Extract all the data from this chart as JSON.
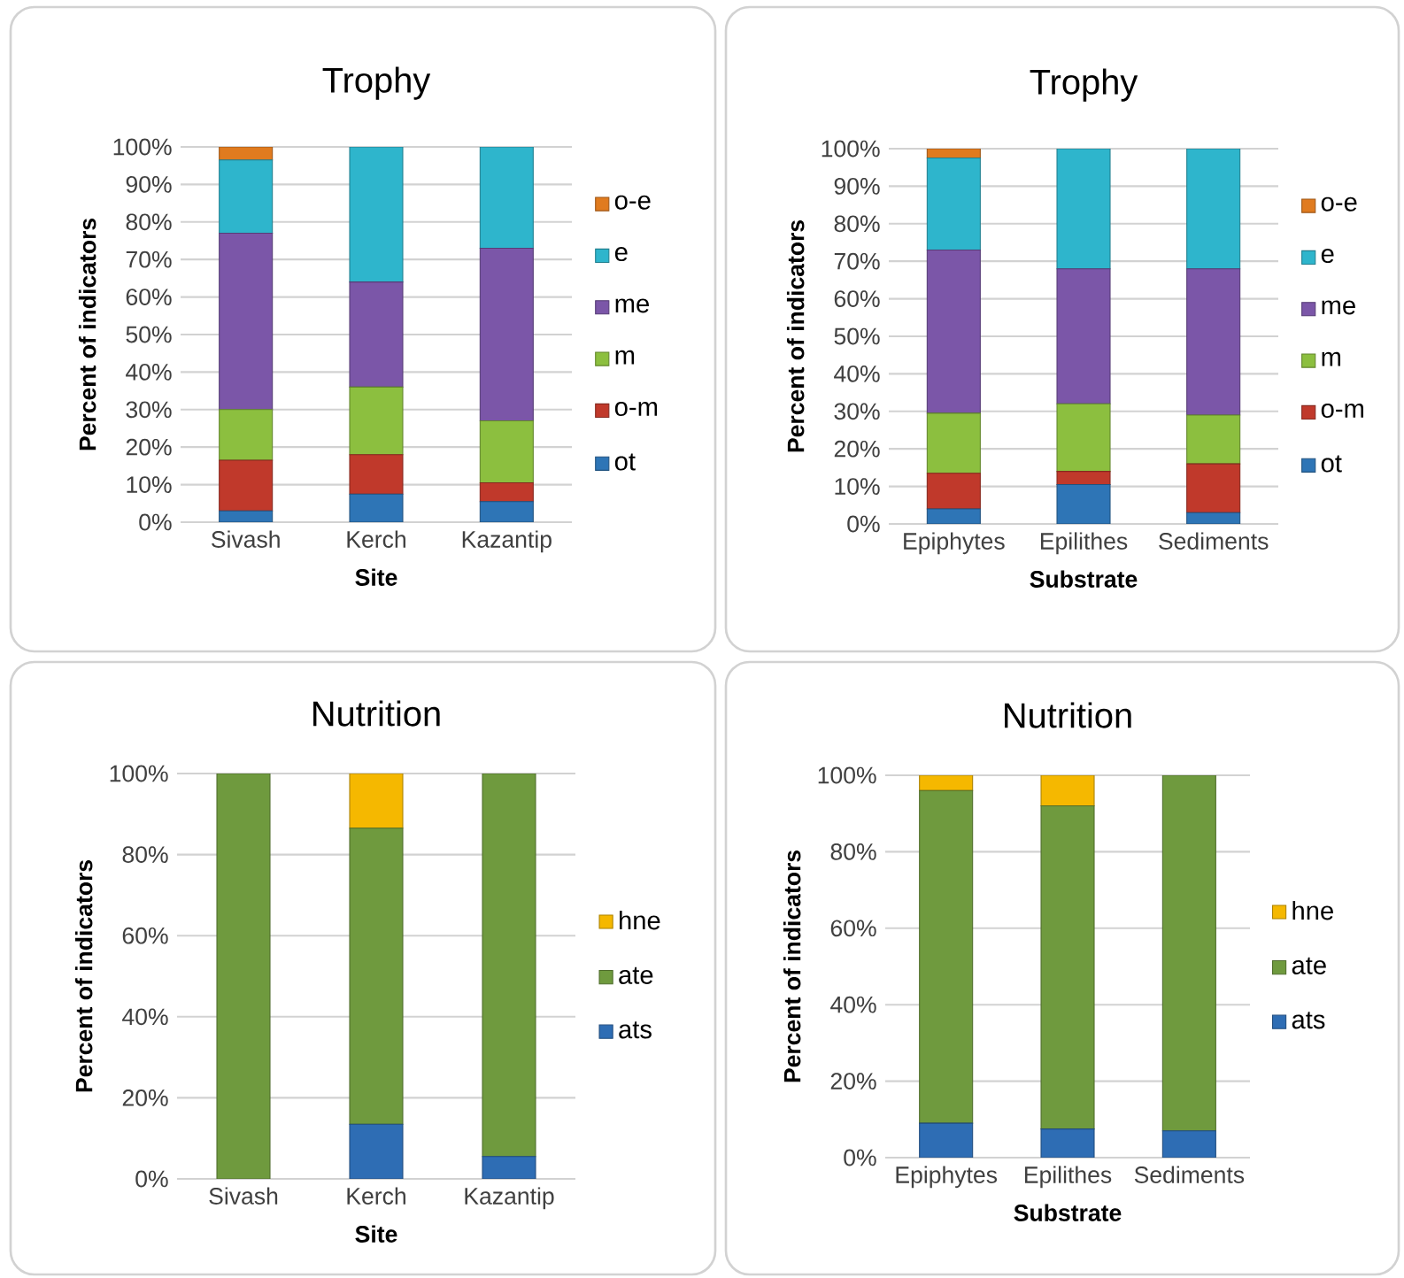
{
  "chart_data": [
    {
      "type": "bar",
      "title": "Trophy",
      "xlabel": "Site",
      "ylabel": "Percent of indicators",
      "categories": [
        "Sivash",
        "Kerch",
        "Kazantip"
      ],
      "stacked": true,
      "grid": "y",
      "legend": "right",
      "ylim": [
        0,
        100
      ],
      "yticks": [
        {
          "value": 0,
          "label": "0%"
        },
        {
          "value": 10,
          "label": "10%"
        },
        {
          "value": 20,
          "label": "20%"
        },
        {
          "value": 30,
          "label": "30%"
        },
        {
          "value": 40,
          "label": "40%"
        },
        {
          "value": 50,
          "label": "50%"
        },
        {
          "value": 60,
          "label": "60%"
        },
        {
          "value": 70,
          "label": "70%"
        },
        {
          "value": 80,
          "label": "80%"
        },
        {
          "value": 90,
          "label": "90%"
        },
        {
          "value": 100,
          "label": "100%"
        }
      ],
      "series": [
        {
          "name": "ot",
          "color": "#2e75b6",
          "values": [
            3,
            7.5,
            5.5
          ]
        },
        {
          "name": "o-m",
          "color": "#c0392b",
          "values": [
            13.5,
            10.5,
            5
          ]
        },
        {
          "name": "m",
          "color": "#8cbf3f",
          "values": [
            13.5,
            18,
            16.5
          ]
        },
        {
          "name": "me",
          "color": "#7b56a8",
          "values": [
            47,
            28,
            46
          ]
        },
        {
          "name": "e",
          "color": "#2eb5cc",
          "values": [
            19.5,
            36,
            27
          ]
        },
        {
          "name": "o-e",
          "color": "#e07b1f",
          "values": [
            3.5,
            0,
            0
          ]
        }
      ]
    },
    {
      "type": "bar",
      "title": "Trophy",
      "xlabel": "Substrate",
      "ylabel": "Percent of indicators",
      "categories": [
        "Epiphytes",
        "Epilithes",
        "Sediments"
      ],
      "stacked": true,
      "grid": "y",
      "legend": "right",
      "ylim": [
        0,
        100
      ],
      "yticks": [
        {
          "value": 0,
          "label": "0%"
        },
        {
          "value": 10,
          "label": "10%"
        },
        {
          "value": 20,
          "label": "20%"
        },
        {
          "value": 30,
          "label": "30%"
        },
        {
          "value": 40,
          "label": "40%"
        },
        {
          "value": 50,
          "label": "50%"
        },
        {
          "value": 60,
          "label": "60%"
        },
        {
          "value": 70,
          "label": "70%"
        },
        {
          "value": 80,
          "label": "80%"
        },
        {
          "value": 90,
          "label": "90%"
        },
        {
          "value": 100,
          "label": "100%"
        }
      ],
      "series": [
        {
          "name": "ot",
          "color": "#2e75b6",
          "values": [
            4,
            10.5,
            3
          ]
        },
        {
          "name": "o-m",
          "color": "#c0392b",
          "values": [
            9.5,
            3.5,
            13
          ]
        },
        {
          "name": "m",
          "color": "#8cbf3f",
          "values": [
            16,
            18,
            13
          ]
        },
        {
          "name": "me",
          "color": "#7b56a8",
          "values": [
            43.5,
            36,
            39
          ]
        },
        {
          "name": "e",
          "color": "#2eb5cc",
          "values": [
            24.5,
            32,
            32
          ]
        },
        {
          "name": "o-e",
          "color": "#e07b1f",
          "values": [
            2.5,
            0,
            0
          ]
        }
      ]
    },
    {
      "type": "bar",
      "title": "Nutrition",
      "xlabel": "Site",
      "ylabel": "Percent of indicators",
      "categories": [
        "Sivash",
        "Kerch",
        "Kazantip"
      ],
      "stacked": true,
      "grid": "y",
      "legend": "right",
      "ylim": [
        0,
        100
      ],
      "yticks": [
        {
          "value": 0,
          "label": "0%"
        },
        {
          "value": 20,
          "label": "20%"
        },
        {
          "value": 40,
          "label": "40%"
        },
        {
          "value": 60,
          "label": "60%"
        },
        {
          "value": 80,
          "label": "80%"
        },
        {
          "value": 100,
          "label": "100%"
        }
      ],
      "series": [
        {
          "name": "ats",
          "color": "#2e6db4",
          "values": [
            0,
            13.5,
            5.5
          ]
        },
        {
          "name": "ate",
          "color": "#6f9a3e",
          "values": [
            100,
            73,
            94.5
          ]
        },
        {
          "name": "hne",
          "color": "#f5b800",
          "values": [
            0,
            13.5,
            0
          ]
        }
      ]
    },
    {
      "type": "bar",
      "title": "Nutrition",
      "xlabel": "Substrate",
      "ylabel": "Percent of indicators",
      "categories": [
        "Epiphytes",
        "Epilithes",
        "Sediments"
      ],
      "stacked": true,
      "grid": "y",
      "legend": "right",
      "ylim": [
        0,
        100
      ],
      "yticks": [
        {
          "value": 0,
          "label": "0%"
        },
        {
          "value": 20,
          "label": "20%"
        },
        {
          "value": 40,
          "label": "40%"
        },
        {
          "value": 60,
          "label": "60%"
        },
        {
          "value": 80,
          "label": "80%"
        },
        {
          "value": 100,
          "label": "100%"
        }
      ],
      "series": [
        {
          "name": "ats",
          "color": "#2e6db4",
          "values": [
            9,
            7.5,
            7
          ]
        },
        {
          "name": "ate",
          "color": "#6f9a3e",
          "values": [
            87,
            84.5,
            93
          ]
        },
        {
          "name": "hne",
          "color": "#f5b800",
          "values": [
            4,
            8,
            0
          ]
        }
      ]
    }
  ]
}
